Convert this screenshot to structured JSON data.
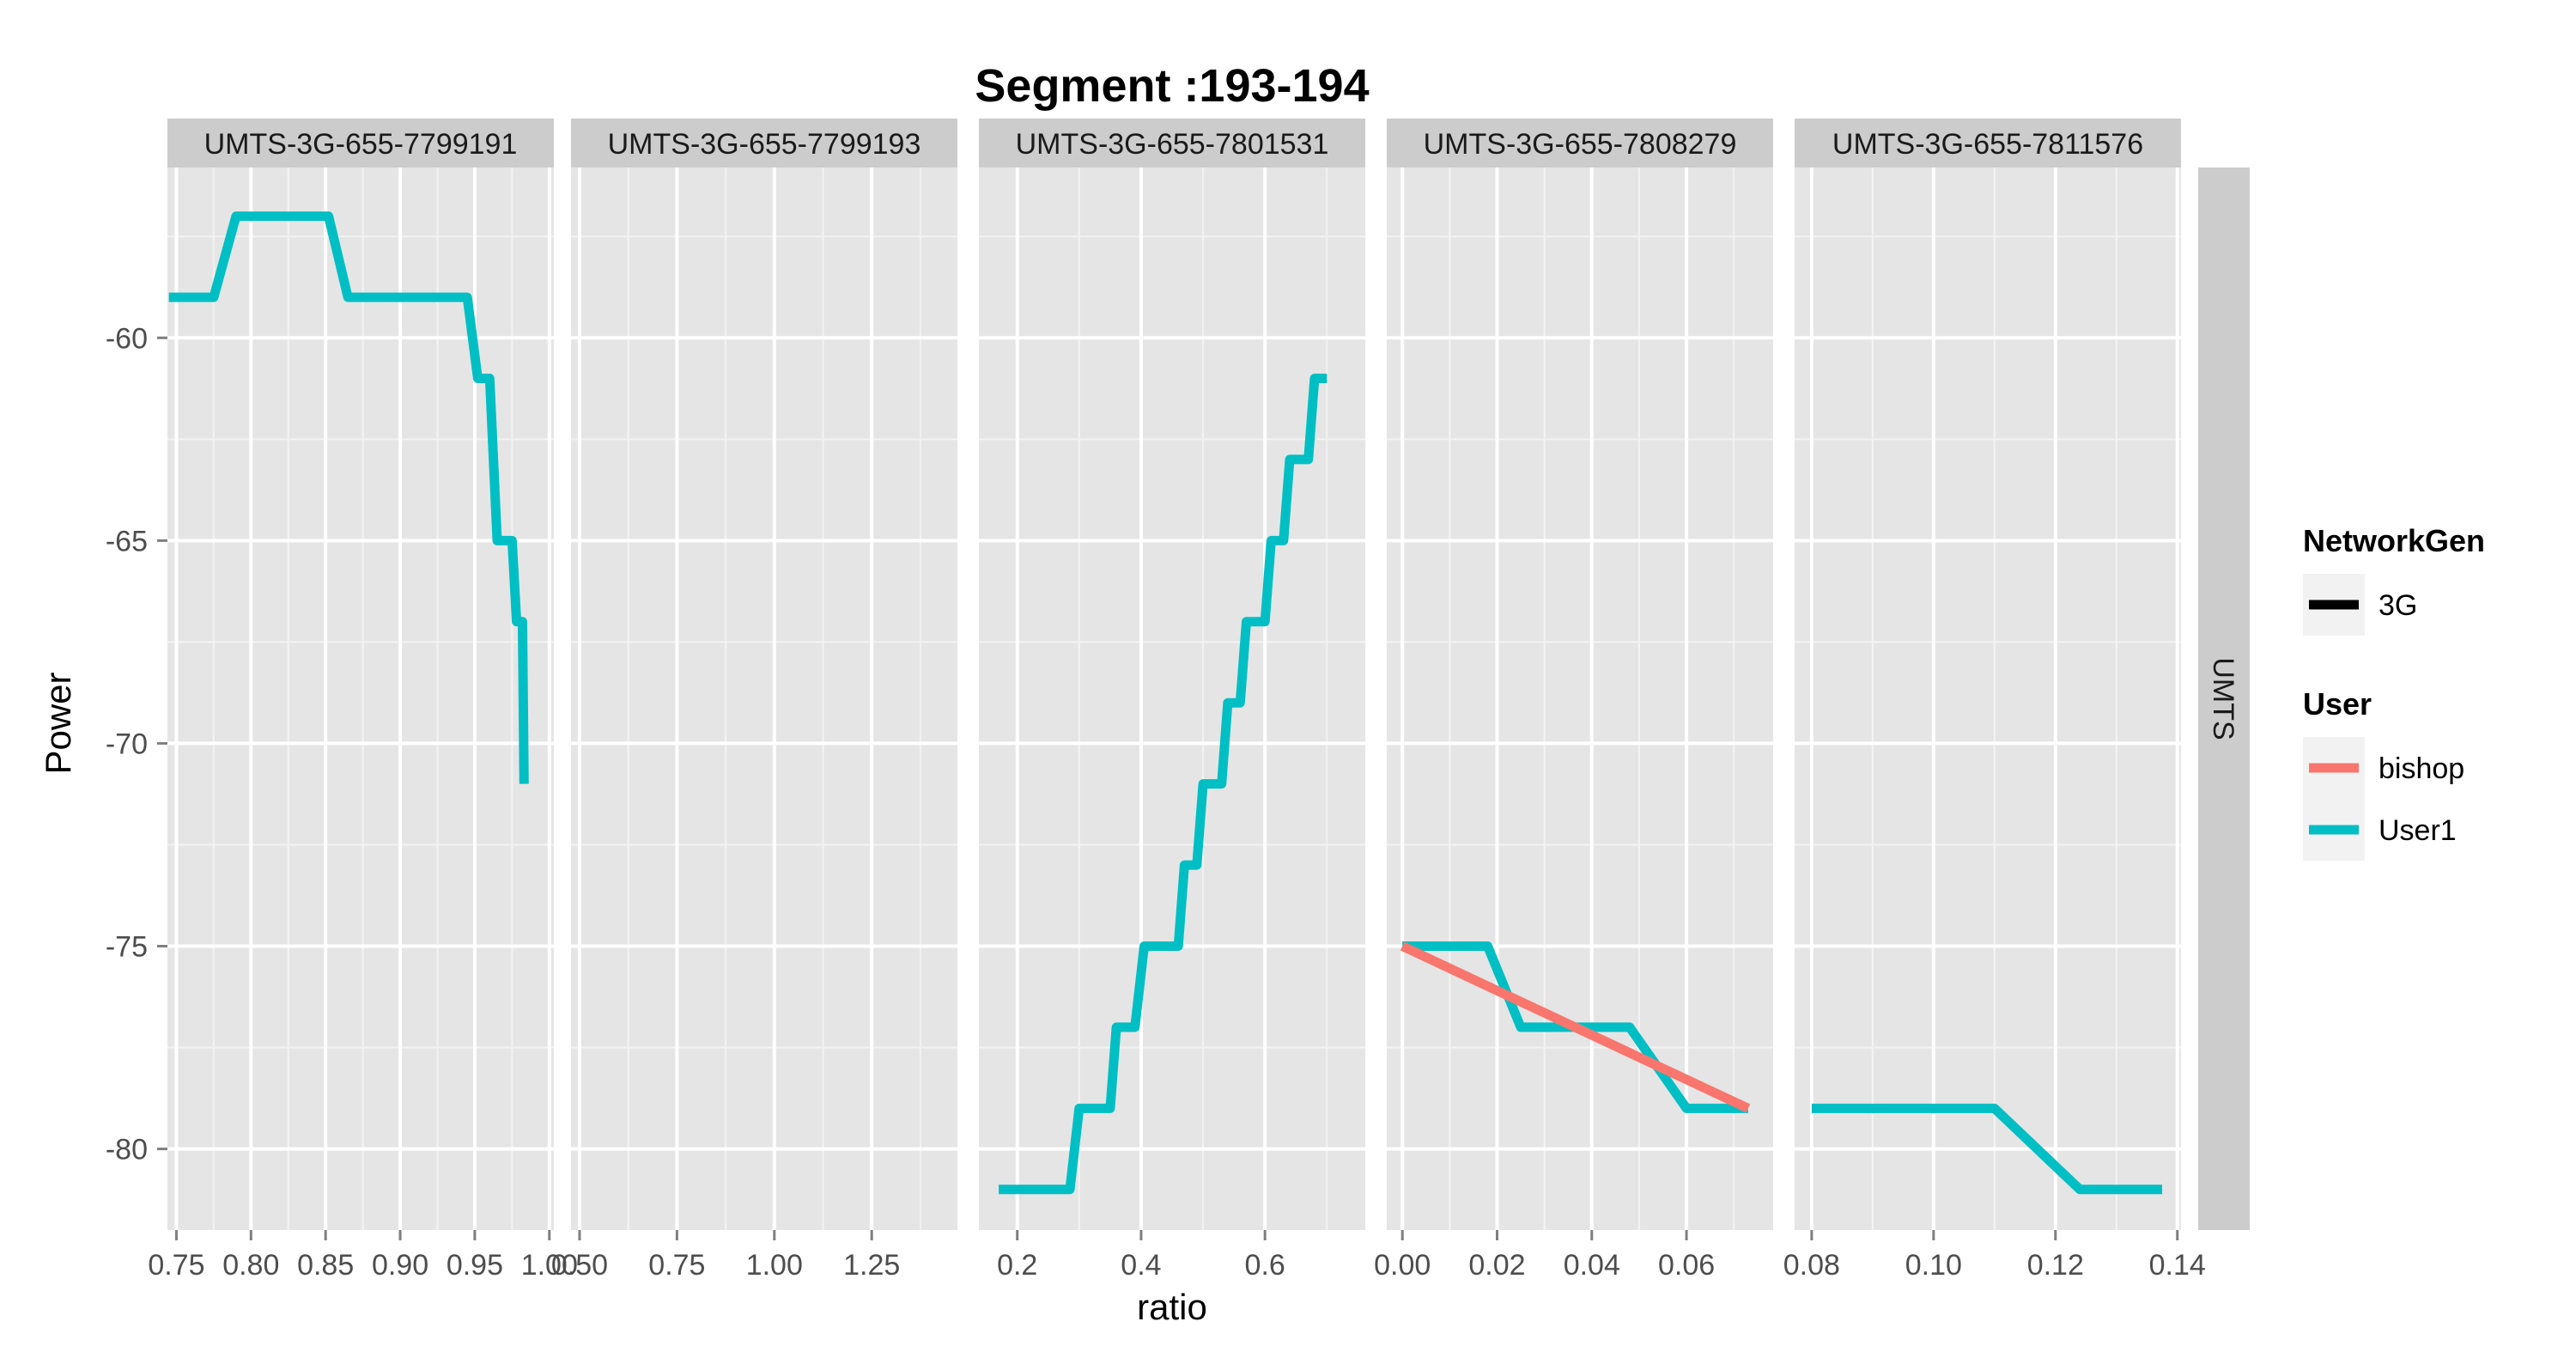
{
  "chart_data": {
    "type": "line",
    "title": "Segment :193-194",
    "xlabel": "ratio",
    "ylabel": "Power",
    "ylim": [
      -82,
      -55.8
    ],
    "yticks": [
      -80,
      -75,
      -70,
      -65,
      -60
    ],
    "row_strip": "UMTS",
    "panels": [
      {
        "label": "UMTS-3G-655-7799191",
        "xlim": [
          0.744,
          1.003
        ],
        "xticks": [
          0.75,
          0.8,
          0.85,
          0.9,
          0.95,
          1.0
        ],
        "xtick_labels": [
          "0.75",
          "0.80",
          "0.85",
          "0.90",
          "0.95",
          "1.00"
        ],
        "series": [
          {
            "name": "User1",
            "points": [
              [
                0.745,
                -59
              ],
              [
                0.775,
                -59
              ],
              [
                0.79,
                -57
              ],
              [
                0.852,
                -57
              ],
              [
                0.865,
                -59
              ],
              [
                0.945,
                -59
              ],
              [
                0.952,
                -61
              ],
              [
                0.96,
                -61
              ],
              [
                0.965,
                -65
              ],
              [
                0.975,
                -65
              ],
              [
                0.978,
                -67
              ],
              [
                0.982,
                -67
              ],
              [
                0.983,
                -71
              ]
            ]
          }
        ]
      },
      {
        "label": "UMTS-3G-655-7799193",
        "xlim": [
          0.478,
          1.47
        ],
        "xticks": [
          0.5,
          0.75,
          1.0,
          1.25
        ],
        "xtick_labels": [
          "0.50",
          "0.75",
          "1.00",
          "1.25"
        ],
        "series": []
      },
      {
        "label": "UMTS-3G-655-7801531",
        "xlim": [
          0.138,
          0.762
        ],
        "xticks": [
          0.2,
          0.4,
          0.6
        ],
        "xtick_labels": [
          "0.2",
          "0.4",
          "0.6"
        ],
        "series": [
          {
            "name": "User1",
            "points": [
              [
                0.17,
                -81
              ],
              [
                0.285,
                -81
              ],
              [
                0.3,
                -79
              ],
              [
                0.35,
                -79
              ],
              [
                0.36,
                -77
              ],
              [
                0.39,
                -77
              ],
              [
                0.405,
                -75
              ],
              [
                0.46,
                -75
              ],
              [
                0.47,
                -73
              ],
              [
                0.49,
                -73
              ],
              [
                0.5,
                -71
              ],
              [
                0.53,
                -71
              ],
              [
                0.54,
                -69
              ],
              [
                0.56,
                -69
              ],
              [
                0.57,
                -67
              ],
              [
                0.6,
                -67
              ],
              [
                0.61,
                -65
              ],
              [
                0.63,
                -65
              ],
              [
                0.64,
                -63
              ],
              [
                0.67,
                -63
              ],
              [
                0.68,
                -61
              ],
              [
                0.7,
                -61
              ]
            ]
          }
        ]
      },
      {
        "label": "UMTS-3G-655-7808279",
        "xlim": [
          -0.0033,
          0.0783
        ],
        "xticks": [
          0.0,
          0.02,
          0.04,
          0.06
        ],
        "xtick_labels": [
          "0.00",
          "0.02",
          "0.04",
          "0.06"
        ],
        "series": [
          {
            "name": "User1",
            "points": [
              [
                0.0,
                -75
              ],
              [
                0.018,
                -75
              ],
              [
                0.025,
                -77
              ],
              [
                0.048,
                -77
              ],
              [
                0.06,
                -79
              ],
              [
                0.073,
                -79
              ]
            ]
          },
          {
            "name": "bishop",
            "points": [
              [
                0.0,
                -75
              ],
              [
                0.073,
                -79
              ]
            ]
          }
        ]
      },
      {
        "label": "UMTS-3G-655-7811576",
        "xlim": [
          0.0772,
          0.1406
        ],
        "xticks": [
          0.08,
          0.1,
          0.12,
          0.14
        ],
        "xtick_labels": [
          "0.08",
          "0.10",
          "0.12",
          "0.14"
        ],
        "series": [
          {
            "name": "User1",
            "points": [
              [
                0.08,
                -79
              ],
              [
                0.11,
                -79
              ],
              [
                0.124,
                -81
              ],
              [
                0.1375,
                -81
              ]
            ]
          }
        ]
      }
    ],
    "legend": {
      "placement": "right",
      "groups": [
        {
          "title": "NetworkGen",
          "items": [
            {
              "label": "3G",
              "color": "#000000"
            }
          ]
        },
        {
          "title": "User",
          "items": [
            {
              "label": "bishop",
              "color": "#F8766D"
            },
            {
              "label": "User1",
              "color": "#00BFC4"
            }
          ]
        }
      ]
    },
    "colors": {
      "User1": "#00BFC4",
      "bishop": "#F8766D"
    }
  }
}
